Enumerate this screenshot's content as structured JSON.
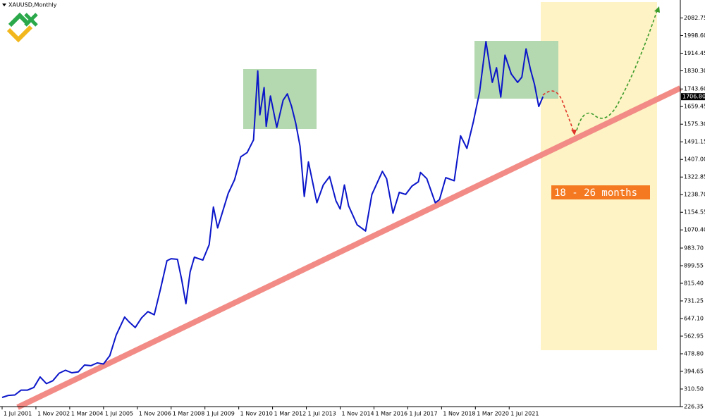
{
  "chart_data": {
    "type": "line",
    "title": "XAUUSD,Monthly",
    "annotation": "18 - 26 months",
    "color": "#0b16c9",
    "x": [
      "2001-07",
      "2001-10",
      "2002-01",
      "2002-04",
      "2002-07",
      "2002-10",
      "2003-01",
      "2003-04",
      "2003-07",
      "2003-10",
      "2004-01",
      "2004-04",
      "2004-07",
      "2004-10",
      "2005-01",
      "2005-04",
      "2005-07",
      "2005-10",
      "2006-01",
      "2006-05",
      "2006-07",
      "2006-10",
      "2007-01",
      "2007-04",
      "2007-07",
      "2007-10",
      "2008-01",
      "2008-03",
      "2008-06",
      "2008-08",
      "2008-10",
      "2008-12",
      "2009-02",
      "2009-06",
      "2009-09",
      "2009-11",
      "2010-01",
      "2010-06",
      "2010-09",
      "2010-12",
      "2011-03",
      "2011-06",
      "2011-08",
      "2011-09",
      "2011-11",
      "2011-12",
      "2012-02",
      "2012-05",
      "2012-08",
      "2012-10",
      "2012-12",
      "2013-02",
      "2013-04",
      "2013-06",
      "2013-08",
      "2013-12",
      "2014-03",
      "2014-06",
      "2014-09",
      "2014-11",
      "2015-01",
      "2015-03",
      "2015-07",
      "2015-11",
      "2016-02",
      "2016-07",
      "2016-09",
      "2016-12",
      "2017-03",
      "2017-06",
      "2017-09",
      "2017-12",
      "2018-01",
      "2018-04",
      "2018-08",
      "2018-10",
      "2019-01",
      "2019-05",
      "2019-08",
      "2019-11",
      "2020-02",
      "2020-05",
      "2020-08",
      "2020-11",
      "2021-01",
      "2021-03",
      "2021-05",
      "2021-08",
      "2021-11",
      "2022-01",
      "2022-03",
      "2022-05",
      "2022-07",
      "2022-09",
      "2022-11"
    ],
    "values": [
      270,
      280,
      282,
      305,
      305,
      318,
      368,
      336,
      350,
      386,
      400,
      388,
      392,
      425,
      422,
      435,
      430,
      470,
      568,
      654,
      632,
      604,
      650,
      680,
      665,
      790,
      923,
      933,
      930,
      833,
      718,
      870,
      940,
      926,
      1000,
      1180,
      1080,
      1245,
      1310,
      1420,
      1440,
      1500,
      1830,
      1620,
      1750,
      1565,
      1710,
      1560,
      1690,
      1720,
      1660,
      1578,
      1470,
      1230,
      1395,
      1200,
      1285,
      1325,
      1210,
      1170,
      1285,
      1185,
      1095,
      1065,
      1240,
      1350,
      1315,
      1150,
      1250,
      1240,
      1280,
      1300,
      1345,
      1315,
      1200,
      1215,
      1320,
      1305,
      1520,
      1460,
      1585,
      1730,
      1970,
      1775,
      1845,
      1705,
      1905,
      1815,
      1775,
      1800,
      1935,
      1840,
      1765,
      1660,
      1706.8
    ],
    "current_price": {
      "value": 1706.8,
      "label": "1706.80"
    },
    "xlim": [
      "2001-06",
      "2028-04"
    ],
    "ylim": [
      229.72,
      2168.5
    ],
    "xticks": [
      {
        "value": "2001-07",
        "label": "1 Jul 2001"
      },
      {
        "value": "2002-11",
        "label": "1 Nov 2002"
      },
      {
        "value": "2004-03",
        "label": "1 Mar 2004"
      },
      {
        "value": "2005-07",
        "label": "1 Jul 2005"
      },
      {
        "value": "2006-11",
        "label": "1 Nov 2006"
      },
      {
        "value": "2008-03",
        "label": "1 Mar 2008"
      },
      {
        "value": "2009-07",
        "label": "1 Jul 2009"
      },
      {
        "value": "2010-11",
        "label": "1 Nov 2010"
      },
      {
        "value": "2012-03",
        "label": "1 Mar 2012"
      },
      {
        "value": "2013-07",
        "label": "1 Jul 2013"
      },
      {
        "value": "2014-11",
        "label": "1 Nov 2014"
      },
      {
        "value": "2016-03",
        "label": "1 Mar 2016"
      },
      {
        "value": "2017-07",
        "label": "1 Jul 2017"
      },
      {
        "value": "2018-11",
        "label": "1 Nov 2018"
      },
      {
        "value": "2020-03",
        "label": "1 Mar 2020"
      },
      {
        "value": "2021-07",
        "label": "1 Jul 2021"
      }
    ],
    "yticks": [
      {
        "value": 2082.75,
        "label": "2082.75"
      },
      {
        "value": 1998.6,
        "label": "1998.60"
      },
      {
        "value": 1914.45,
        "label": "1914.45"
      },
      {
        "value": 1830.3,
        "label": "1830.30"
      },
      {
        "value": 1743.6,
        "label": "1743.60"
      },
      {
        "value": 1659.45,
        "label": "1659.45"
      },
      {
        "value": 1575.3,
        "label": "1575.30"
      },
      {
        "value": 1491.15,
        "label": "1491.15"
      },
      {
        "value": 1407,
        "label": "1407.00"
      },
      {
        "value": 1322.85,
        "label": "1322.85"
      },
      {
        "value": 1238.7,
        "label": "1238.70"
      },
      {
        "value": 1154.55,
        "label": "1154.55"
      },
      {
        "value": 1070.4,
        "label": "1070.40"
      },
      {
        "value": 983.7,
        "label": "983.70"
      },
      {
        "value": 899.55,
        "label": "899.55"
      },
      {
        "value": 815.4,
        "label": "815.40"
      },
      {
        "value": 731.25,
        "label": "731.25"
      },
      {
        "value": 647.1,
        "label": "647.10"
      },
      {
        "value": 562.95,
        "label": "562.95"
      },
      {
        "value": 478.8,
        "label": "478.80"
      },
      {
        "value": 394.65,
        "label": "394.65"
      },
      {
        "value": 310.5,
        "label": "310.50"
      },
      {
        "value": 226.35,
        "label": "226.35"
      }
    ]
  }
}
